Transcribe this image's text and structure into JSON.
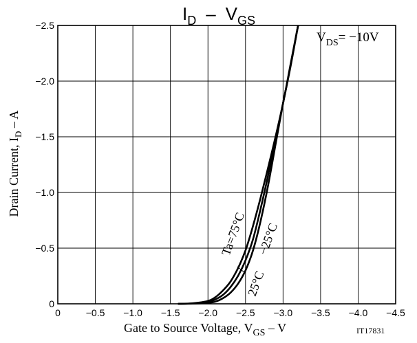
{
  "chart_data": {
    "type": "line",
    "title": "ID – VGS",
    "title_parts": {
      "main1": "I",
      "sub1": "D",
      "dash": "–",
      "main2": "V",
      "sub2": "GS"
    },
    "annotation": {
      "prefix": "V",
      "sub": "DS",
      "suffix": "= −10V"
    },
    "ylabel_parts": {
      "main": "Drain Current, I",
      "sub": "D",
      "unit": " – A"
    },
    "xlabel_parts": {
      "main": "Gate to Source Voltage, V",
      "sub": "GS",
      "unit": " – V"
    },
    "figure_id": "IT17831",
    "x_ticks": [
      "0",
      "−0.5",
      "−1.0",
      "−1.5",
      "−2.0",
      "−2.5",
      "−3.0",
      "−3.5",
      "−4.0",
      "−4.5"
    ],
    "y_ticks": [
      "0",
      "−0.5",
      "−1.0",
      "−1.5",
      "−2.0",
      "−2.5"
    ],
    "xlim": [
      0,
      -4.5
    ],
    "ylim": [
      0,
      -2.5
    ],
    "grid": true,
    "series": [
      {
        "name": "Ta=75°C",
        "x": [
          -1.6,
          -1.8,
          -2.0,
          -2.1,
          -2.2,
          -2.3,
          -2.4,
          -2.5,
          -2.6,
          -2.7,
          -2.8,
          -2.9,
          -3.0,
          -3.1,
          -3.2
        ],
        "y": [
          0,
          -0.005,
          -0.025,
          -0.06,
          -0.12,
          -0.2,
          -0.32,
          -0.48,
          -0.7,
          -0.95,
          -1.22,
          -1.5,
          -1.8,
          -2.15,
          -2.5
        ]
      },
      {
        "name": "25°C",
        "x": [
          -1.6,
          -1.8,
          -2.0,
          -2.1,
          -2.2,
          -2.3,
          -2.4,
          -2.5,
          -2.6,
          -2.7,
          -2.8,
          -2.9,
          -3.0,
          -3.1,
          -3.2
        ],
        "y": [
          0,
          -0.003,
          -0.015,
          -0.04,
          -0.08,
          -0.15,
          -0.25,
          -0.39,
          -0.58,
          -0.85,
          -1.15,
          -1.48,
          -1.8,
          -2.14,
          -2.5
        ]
      },
      {
        "name": "−25°C",
        "x": [
          -1.6,
          -1.8,
          -2.0,
          -2.1,
          -2.2,
          -2.3,
          -2.4,
          -2.5,
          -2.6,
          -2.7,
          -2.8,
          -2.9,
          -3.0,
          -3.1,
          -3.2
        ],
        "y": [
          0,
          -0.002,
          -0.008,
          -0.02,
          -0.05,
          -0.1,
          -0.18,
          -0.3,
          -0.48,
          -0.74,
          -1.06,
          -1.43,
          -1.8,
          -2.13,
          -2.5
        ]
      }
    ],
    "curve_labels": [
      "Ta=75°C",
      "−25°C",
      "25°C"
    ]
  }
}
